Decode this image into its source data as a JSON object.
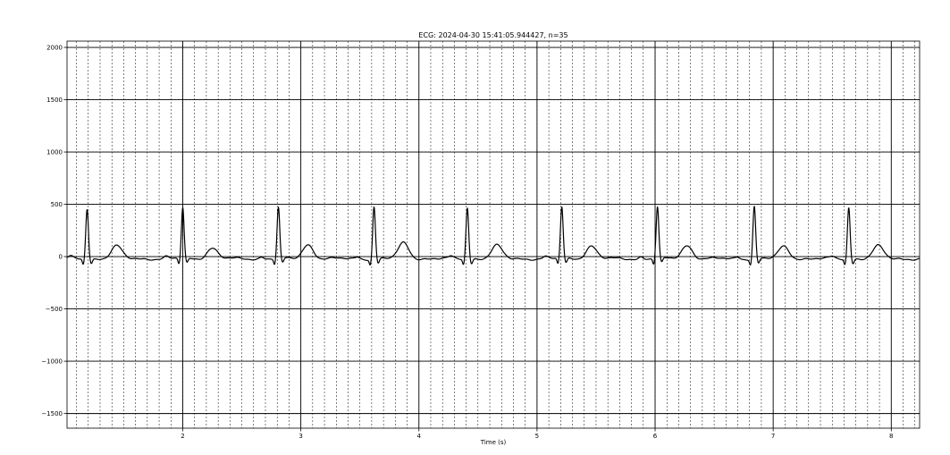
{
  "chart_data": {
    "type": "line",
    "title": "ECG: 2024-04-30 15:41:05.944427, n=35",
    "xlabel": "Time (s)",
    "ylabel": "",
    "xlim": [
      1.02,
      8.24
    ],
    "ylim": [
      -1640,
      2060
    ],
    "x_major_ticks": [
      2,
      3,
      4,
      5,
      6,
      7,
      8
    ],
    "x_major_tick_labels": [
      "2",
      "3",
      "4",
      "5",
      "6",
      "7",
      "8"
    ],
    "x_minor_step": 0.1,
    "y_major_ticks": [
      -1500,
      -1000,
      -500,
      0,
      500,
      1000,
      1500,
      2000
    ],
    "y_major_tick_labels": [
      "−1500",
      "−1000",
      "−500",
      "0",
      "500",
      "1000",
      "1500",
      "2000"
    ],
    "y_minor_step": 500,
    "grid": true,
    "line_color": "#000000",
    "beat_times": [
      1.19,
      2.0,
      2.81,
      3.62,
      4.41,
      5.21,
      6.02,
      6.84,
      7.64
    ],
    "r_peak_amplitudes": [
      460,
      465,
      465,
      478,
      470,
      472,
      472,
      482,
      472
    ],
    "t_wave_amplitudes": [
      110,
      92,
      125,
      140,
      115,
      112,
      118,
      105,
      110
    ],
    "baseline": -20
  }
}
